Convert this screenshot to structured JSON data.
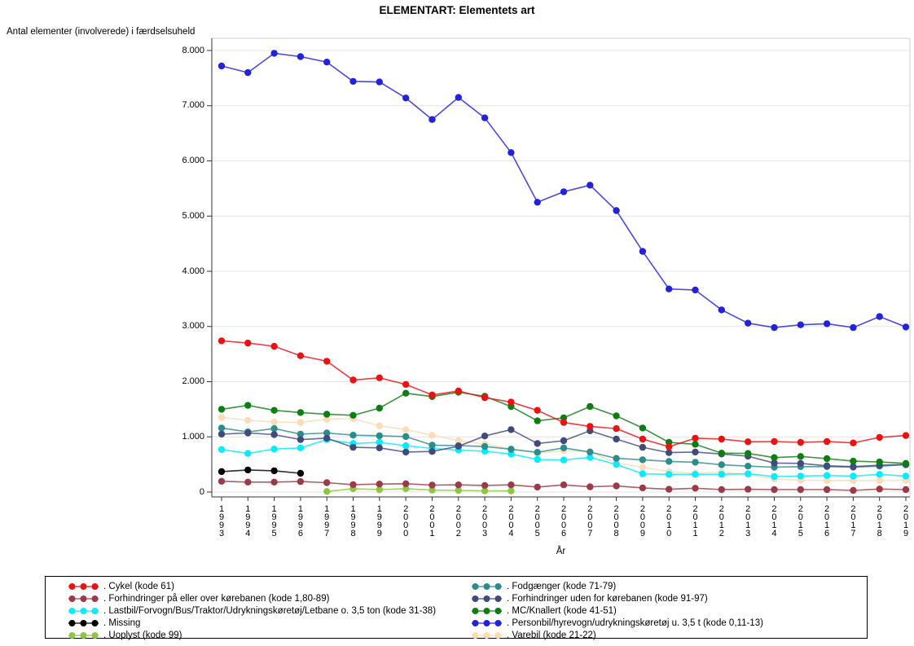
{
  "title": "ELEMENTART: Elementets art",
  "y_axis": {
    "label": "Antal elementer (involverede) i færdselsuheld",
    "tick_values": [
      0,
      1000,
      2000,
      3000,
      4000,
      5000,
      6000,
      7000,
      8000
    ],
    "tick_labels": [
      "0",
      "1.000",
      "2.000",
      "3.000",
      "4.000",
      "5.000",
      "6.000",
      "7.000",
      "8.000"
    ]
  },
  "x_axis": {
    "label": "År",
    "tick_labels": [
      "1993",
      "1994",
      "1995",
      "1996",
      "1997",
      "1998",
      "1999",
      "2000",
      "2001",
      "2002",
      "2003",
      "2004",
      "2005",
      "2006",
      "2007",
      "2008",
      "2009",
      "2010",
      "2011",
      "2012",
      "2013",
      "2014",
      "2015",
      "2016",
      "2017",
      "2018",
      "2019"
    ]
  },
  "chart_data": {
    "type": "line",
    "title": "ELEMENTART: Elementets art",
    "xlabel": "År",
    "ylabel": "Antal elementer (involverede) i færdselsuheld",
    "ylim": [
      0,
      8000
    ],
    "grid": true,
    "legend_position": "bottom",
    "x": [
      1993,
      1994,
      1995,
      1996,
      1997,
      1998,
      1999,
      2000,
      2001,
      2002,
      2003,
      2004,
      2005,
      2006,
      2007,
      2008,
      2009,
      2010,
      2011,
      2012,
      2013,
      2014,
      2015,
      2016,
      2017,
      2018,
      2019
    ],
    "series": [
      {
        "key": "cykel",
        "legend_label": ". Cykel (kode 61)",
        "color": "#ed1111",
        "values": [
          2740,
          2700,
          2640,
          2470,
          2370,
          2030,
          2070,
          1950,
          1760,
          1830,
          1710,
          1630,
          1480,
          1260,
          1190,
          1150,
          960,
          820,
          975,
          960,
          910,
          915,
          900,
          915,
          890,
          990,
          1025
        ]
      },
      {
        "key": "forhindringer_paa",
        "legend_label": ". Forhindringer på eller over kørebanen (kode 1,80-89)",
        "color": "#9c3a49",
        "values": [
          195,
          180,
          180,
          190,
          170,
          135,
          145,
          150,
          125,
          130,
          120,
          130,
          90,
          130,
          95,
          110,
          75,
          50,
          70,
          45,
          50,
          45,
          45,
          45,
          30,
          55,
          45
        ]
      },
      {
        "key": "lastbil",
        "legend_label": ". Lastbil/Forvogn/Bus/Traktor/Udrykningskøretøj/Letbane o. 3,5 ton (kode 31-38)",
        "color": "#00eeff",
        "values": [
          770,
          700,
          780,
          800,
          950,
          880,
          900,
          840,
          790,
          760,
          740,
          690,
          590,
          580,
          630,
          500,
          330,
          320,
          320,
          320,
          330,
          280,
          290,
          300,
          290,
          320,
          290
        ]
      },
      {
        "key": "missing",
        "legend_label": ". Missing",
        "color": "#000000",
        "values": [
          370,
          400,
          385,
          340,
          null,
          null,
          null,
          null,
          null,
          null,
          null,
          null,
          null,
          null,
          null,
          null,
          null,
          null,
          null,
          null,
          null,
          null,
          null,
          null,
          null,
          null,
          null
        ]
      },
      {
        "key": "uoplyst",
        "legend_label": ". Uoplyst (kode 99)",
        "color": "#8ec73f",
        "values": [
          null,
          null,
          null,
          null,
          10,
          60,
          45,
          60,
          35,
          30,
          20,
          20,
          null,
          null,
          null,
          null,
          null,
          null,
          null,
          null,
          null,
          null,
          null,
          null,
          null,
          null,
          null
        ]
      },
      {
        "key": "fodgaenger",
        "legend_label": ". Fodgænger (kode 71-79)",
        "color": "#2b8c8c",
        "values": [
          1160,
          1090,
          1150,
          1050,
          1070,
          1030,
          1020,
          1005,
          850,
          840,
          825,
          775,
          720,
          800,
          725,
          610,
          585,
          555,
          540,
          495,
          470,
          450,
          460,
          460,
          450,
          470,
          495
        ]
      },
      {
        "key": "forhindringer_uden",
        "legend_label": ". Forhindringer uden for kørebanen (kode 91-97)",
        "color": "#42497b",
        "values": [
          1050,
          1070,
          1040,
          950,
          975,
          810,
          800,
          725,
          735,
          830,
          1015,
          1130,
          880,
          930,
          1110,
          960,
          810,
          715,
          725,
          690,
          650,
          525,
          520,
          475,
          460,
          485,
          500
        ]
      },
      {
        "key": "mc",
        "legend_label": ". MC/Knallert (kode 41-51)",
        "color": "#0f7e12",
        "values": [
          1500,
          1570,
          1480,
          1440,
          1410,
          1390,
          1520,
          1790,
          1730,
          1810,
          1735,
          1550,
          1290,
          1345,
          1550,
          1380,
          1160,
          900,
          865,
          705,
          700,
          625,
          645,
          605,
          560,
          545,
          520
        ]
      },
      {
        "key": "personbil",
        "legend_label": ". Personbil/hyrevogn/udrykningskøretøj u. 3,5 t (kode 0,11-13)",
        "color": "#2222dd",
        "values": [
          7720,
          7600,
          7950,
          7890,
          7790,
          7440,
          7430,
          7140,
          6750,
          7150,
          6780,
          6150,
          5250,
          5440,
          5560,
          5100,
          4360,
          3680,
          3660,
          3300,
          3060,
          2980,
          3030,
          3050,
          2980,
          3180,
          2990
        ]
      },
      {
        "key": "varebil",
        "legend_label": ". Varebil (kode 21-22)",
        "color": "#fbdcb7",
        "values": [
          1350,
          1300,
          1270,
          1260,
          1320,
          1330,
          1200,
          1130,
          1030,
          930,
          870,
          780,
          700,
          750,
          730,
          530,
          450,
          370,
          340,
          360,
          320,
          235,
          215,
          210,
          210,
          210,
          215
        ]
      }
    ],
    "draw_order": [
      "uoplyst",
      "varebil",
      "lastbil",
      "fodgaenger",
      "forhindringer_uden",
      "mc",
      "forhindringer_paa",
      "missing",
      "cykel",
      "personbil"
    ]
  },
  "legend": {
    "columns": [
      [
        "cykel",
        "forhindringer_paa",
        "lastbil",
        "missing",
        "uoplyst"
      ],
      [
        "fodgaenger",
        "forhindringer_uden",
        "mc",
        "personbil",
        "varebil"
      ]
    ]
  },
  "style": {
    "grid_color": "#e4e4e4",
    "border_color": "#cfcfcf",
    "axis_color": "#333333"
  }
}
